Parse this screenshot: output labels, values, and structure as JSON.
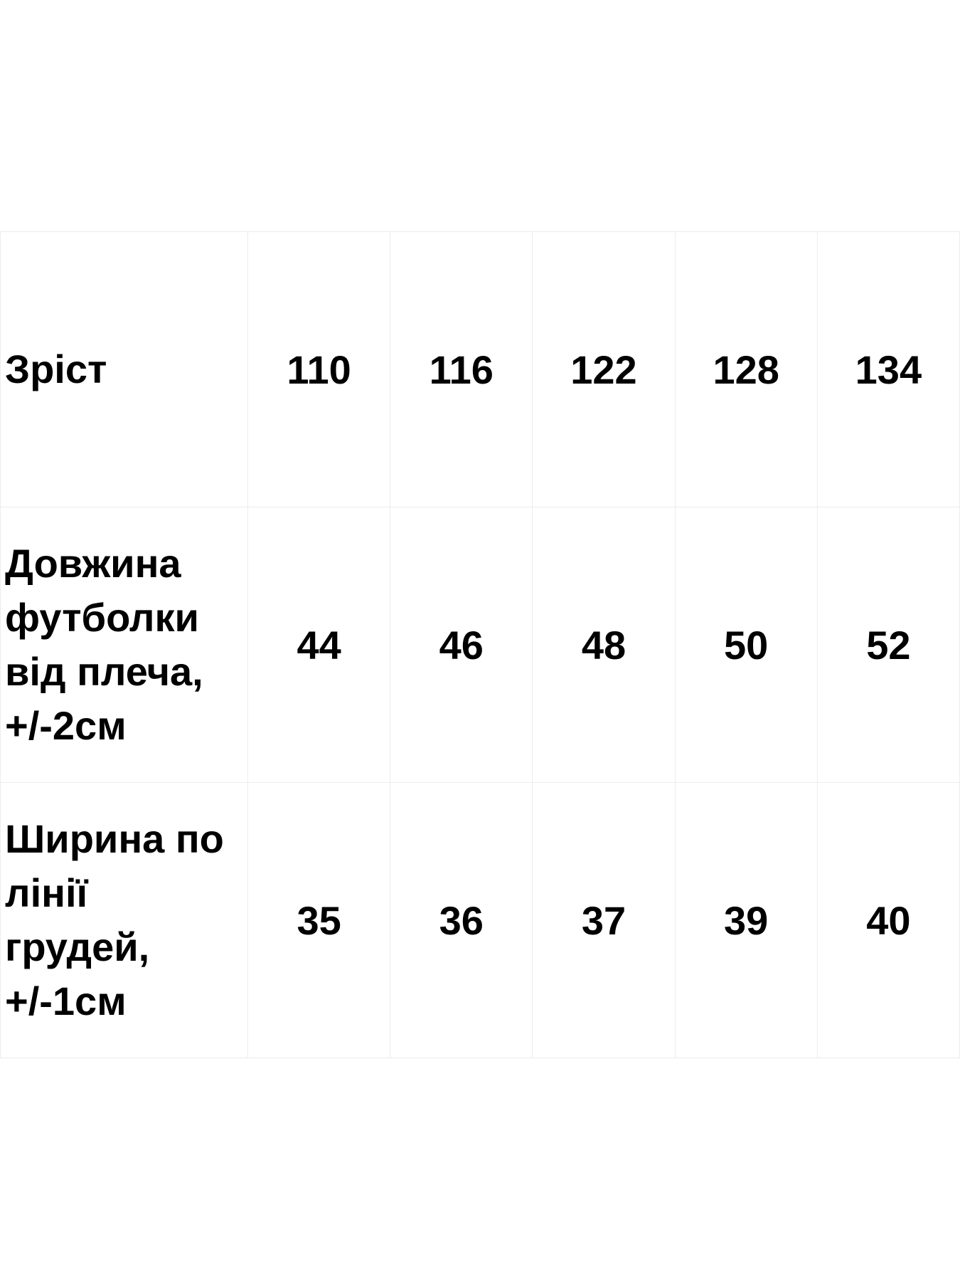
{
  "size_table": {
    "rows": [
      {
        "label_lines": [
          "Зріст"
        ],
        "values": [
          "110",
          "116",
          "122",
          "128",
          "134"
        ]
      },
      {
        "label_lines": [
          "Довжина",
          "футболки",
          "від плеча,",
          "+/-2см"
        ],
        "values": [
          "44",
          "46",
          "48",
          "50",
          "52"
        ]
      },
      {
        "label_lines": [
          "Ширина по",
          "лінії",
          "грудей,",
          "+/-1см"
        ],
        "values": [
          "35",
          "36",
          "37",
          "39",
          "40"
        ]
      }
    ]
  }
}
